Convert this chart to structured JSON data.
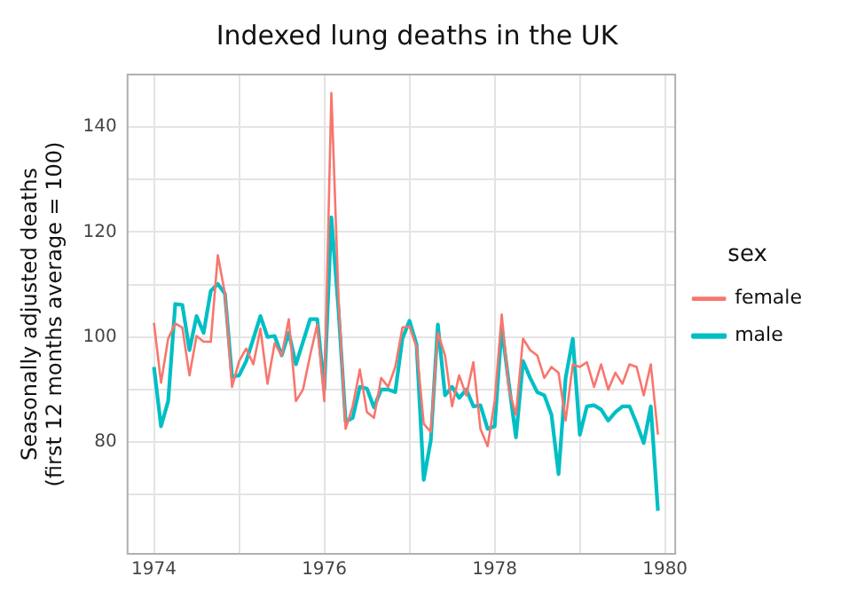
{
  "chart_data": {
    "type": "line",
    "title": "Indexed lung deaths in the UK",
    "ylabel": "Seasonally adjusted deaths\n(first 12 months average = 100)",
    "legend_title": "sex",
    "legend": "right",
    "grid": true,
    "marker": "none",
    "line_style": "solid",
    "xlim": [
      1973.69,
      1980.12
    ],
    "xticks": [
      1974,
      {
        "value": 1975,
        "label": null
      },
      1976,
      {
        "value": 1977,
        "label": null
      },
      1978,
      {
        "value": 1979,
        "label": null
      },
      1980
    ],
    "ylim": [
      58.7,
      150
    ],
    "yticks": [
      {
        "value": 70,
        "label": null
      },
      80,
      {
        "value": 90,
        "label": null
      },
      100,
      {
        "value": 110,
        "label": null
      },
      120,
      {
        "value": 130,
        "label": null
      },
      140
    ],
    "x": [
      1974,
      1974.083,
      1974.167,
      1974.25,
      1974.333,
      1974.417,
      1974.5,
      1974.583,
      1974.667,
      1974.75,
      1974.833,
      1974.917,
      1975,
      1975.083,
      1975.167,
      1975.25,
      1975.333,
      1975.417,
      1975.5,
      1975.583,
      1975.667,
      1975.75,
      1975.833,
      1975.917,
      1976,
      1976.083,
      1976.167,
      1976.25,
      1976.333,
      1976.417,
      1976.5,
      1976.583,
      1976.667,
      1976.75,
      1976.833,
      1976.917,
      1977,
      1977.083,
      1977.167,
      1977.25,
      1977.333,
      1977.417,
      1977.5,
      1977.583,
      1977.667,
      1977.75,
      1977.833,
      1977.917,
      1978,
      1978.083,
      1978.167,
      1978.25,
      1978.333,
      1978.417,
      1978.5,
      1978.583,
      1978.667,
      1978.75,
      1978.833,
      1978.917,
      1979,
      1979.083,
      1979.167,
      1979.25,
      1979.333,
      1979.417,
      1979.5,
      1979.583,
      1979.667,
      1979.75,
      1979.833,
      1979.917
    ],
    "series": [
      {
        "name": "female",
        "color": "#f8766d",
        "values": [
          102.7,
          91.3,
          99.7,
          102.6,
          101.8,
          92.7,
          100.2,
          99.1,
          99.1,
          115.6,
          108.3,
          90.5,
          95.4,
          97.8,
          94.8,
          101.6,
          91.1,
          98.8,
          96.5,
          103.4,
          87.8,
          90,
          96.5,
          102.4,
          87.8,
          146.5,
          107.2,
          82.5,
          86.8,
          93.8,
          85.7,
          84.6,
          92.2,
          90.5,
          94.3,
          101.8,
          102,
          98.1,
          83.5,
          81.9,
          100.8,
          96.5,
          86.8,
          92.7,
          88.9,
          95.2,
          82.5,
          79.2,
          87.8,
          104.3,
          90,
          85.2,
          99.7,
          97.5,
          96.5,
          92.2,
          94.3,
          93.2,
          84.1,
          94.8,
          94.3,
          95.2,
          90.5,
          94.8,
          90,
          93.2,
          91.1,
          94.8,
          94.3,
          88.9,
          94.8,
          81.4
        ]
      },
      {
        "name": "male",
        "color": "#00bfc4",
        "values": [
          94.3,
          83,
          87.8,
          106.3,
          106.1,
          97.5,
          104,
          100.8,
          108.8,
          110.1,
          108.3,
          92.4,
          92.7,
          95.4,
          99.7,
          104,
          100,
          100.2,
          96.5,
          100.8,
          94.8,
          99.1,
          103.4,
          103.4,
          90,
          122.8,
          105.1,
          83.9,
          84.6,
          90.5,
          90.2,
          86.6,
          90,
          90,
          89.5,
          99.7,
          103.1,
          98.6,
          72.8,
          80.3,
          102.4,
          88.9,
          90.5,
          88.4,
          90,
          86.8,
          87,
          82.5,
          83,
          101.8,
          91.1,
          80.9,
          95.4,
          92.2,
          89.5,
          88.9,
          85.2,
          73.9,
          92.2,
          99.7,
          81.4,
          86.8,
          87,
          86.2,
          84.1,
          85.7,
          86.8,
          86.8,
          83.5,
          79.8,
          86.8,
          66.9
        ]
      }
    ]
  }
}
